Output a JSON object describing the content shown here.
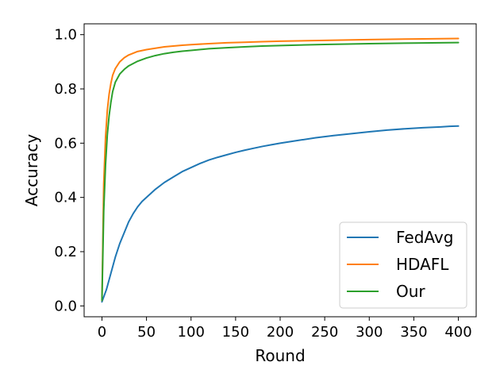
{
  "chart_data": {
    "type": "line",
    "title": "",
    "xlabel": "Round",
    "ylabel": "Accuracy",
    "xlim": [
      -20,
      420
    ],
    "ylim": [
      -0.04,
      1.04
    ],
    "xticks": [
      0,
      50,
      100,
      150,
      200,
      250,
      300,
      350,
      400
    ],
    "yticks": [
      0.0,
      0.2,
      0.4,
      0.6,
      0.8,
      1.0
    ],
    "xtick_labels": [
      "0",
      "50",
      "100",
      "150",
      "200",
      "250",
      "300",
      "350",
      "400"
    ],
    "ytick_labels": [
      "0.0",
      "0.2",
      "0.4",
      "0.6",
      "0.8",
      "1.0"
    ],
    "grid": false,
    "legend_position": "lower-right",
    "series": [
      {
        "name": "FedAvg",
        "color": "#1f77b4",
        "x": [
          0,
          5,
          10,
          15,
          20,
          25,
          30,
          35,
          40,
          45,
          50,
          60,
          70,
          80,
          90,
          100,
          110,
          120,
          130,
          140,
          150,
          160,
          170,
          180,
          190,
          200,
          220,
          240,
          260,
          280,
          300,
          320,
          340,
          360,
          380,
          390,
          400
        ],
        "y": [
          0.015,
          0.06,
          0.12,
          0.18,
          0.23,
          0.27,
          0.31,
          0.34,
          0.365,
          0.385,
          0.4,
          0.43,
          0.455,
          0.475,
          0.495,
          0.51,
          0.525,
          0.538,
          0.548,
          0.557,
          0.566,
          0.574,
          0.581,
          0.588,
          0.594,
          0.6,
          0.61,
          0.62,
          0.628,
          0.635,
          0.642,
          0.648,
          0.653,
          0.657,
          0.66,
          0.662,
          0.663
        ]
      },
      {
        "name": "HDAFL",
        "color": "#ff7f0e",
        "x": [
          0,
          2,
          4,
          6,
          8,
          10,
          12,
          15,
          20,
          25,
          30,
          40,
          50,
          60,
          70,
          80,
          90,
          100,
          120,
          140,
          160,
          180,
          200,
          250,
          300,
          350,
          400
        ],
        "y": [
          0.02,
          0.45,
          0.62,
          0.72,
          0.78,
          0.82,
          0.85,
          0.875,
          0.9,
          0.915,
          0.925,
          0.938,
          0.945,
          0.95,
          0.955,
          0.958,
          0.961,
          0.963,
          0.967,
          0.97,
          0.972,
          0.974,
          0.976,
          0.979,
          0.982,
          0.984,
          0.986
        ]
      },
      {
        "name": "Our",
        "color": "#2ca02c",
        "x": [
          0,
          2,
          4,
          6,
          8,
          10,
          12,
          15,
          20,
          25,
          30,
          40,
          50,
          60,
          70,
          80,
          90,
          100,
          120,
          140,
          160,
          180,
          200,
          250,
          300,
          350,
          400
        ],
        "y": [
          0.02,
          0.35,
          0.52,
          0.63,
          0.7,
          0.75,
          0.79,
          0.825,
          0.855,
          0.872,
          0.885,
          0.902,
          0.914,
          0.923,
          0.93,
          0.935,
          0.939,
          0.942,
          0.948,
          0.952,
          0.955,
          0.958,
          0.96,
          0.964,
          0.967,
          0.969,
          0.971
        ]
      }
    ]
  }
}
